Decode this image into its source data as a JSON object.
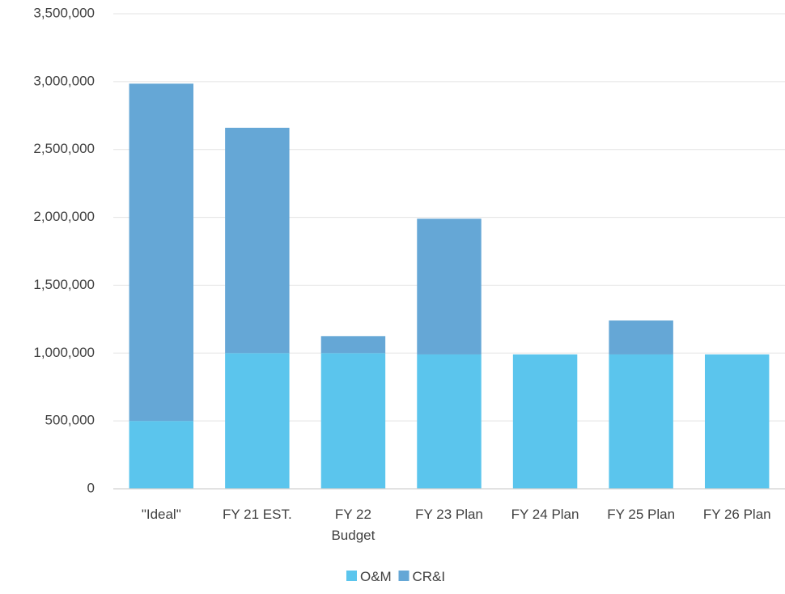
{
  "chart_data": {
    "type": "bar",
    "stacked": true,
    "title": "",
    "xlabel": "",
    "ylabel": "",
    "categories": [
      [
        "\"Ideal\""
      ],
      [
        "FY 21 EST."
      ],
      [
        "FY 22",
        "Budget"
      ],
      [
        "FY 23 Plan"
      ],
      [
        "FY 24 Plan"
      ],
      [
        "FY 25 Plan"
      ],
      [
        "FY 26 Plan"
      ]
    ],
    "series": [
      {
        "name": "O&M",
        "color": "#5bc5ed",
        "values": [
          500000,
          1000000,
          1000000,
          990000,
          990000,
          990000,
          990000
        ]
      },
      {
        "name": "CR&I",
        "color": "#65a7d6",
        "values": [
          2485000,
          1660000,
          125000,
          1000000,
          0,
          250000,
          0
        ]
      }
    ],
    "ylim": [
      0,
      3500000
    ],
    "yticks": [
      0,
      500000,
      1000000,
      1500000,
      2000000,
      2500000,
      3000000,
      3500000
    ],
    "ytick_labels": [
      "0",
      "500,000",
      "1,000,000",
      "1,500,000",
      "2,000,000",
      "2,500,000",
      "3,000,000",
      "3,500,000"
    ],
    "grid": true,
    "legend": "bottom-center"
  }
}
